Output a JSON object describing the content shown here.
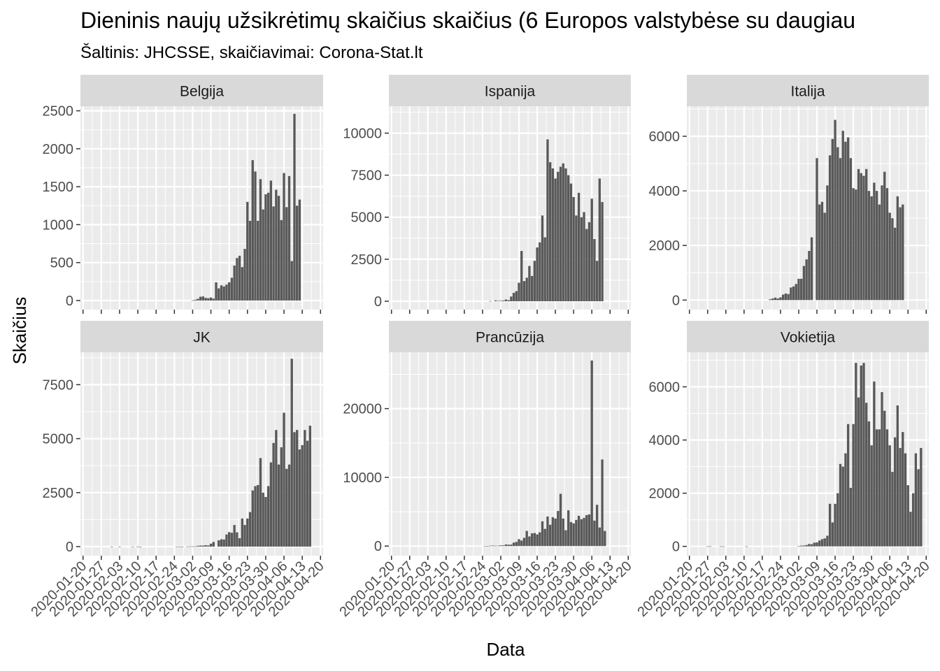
{
  "title": "Dieninis naujų užsikrėtimų skaičius skaičius (6 Europos valstybėse su daugiau",
  "subtitle": "Šaltinis: JHCSSE, skaičiavimai: Corona-Stat.lt",
  "colors": {
    "bar": "#595959",
    "panel": "#ebebeb",
    "strip": "#d9d9d9",
    "grid": "#ffffff"
  },
  "chart_data": {
    "type": "bar",
    "xlabel": "Data",
    "ylabel": "Skaičius",
    "x_ticks": [
      "2020-01-20",
      "2020-01-27",
      "2020-02-03",
      "2020-02-10",
      "2020-02-17",
      "2020-02-24",
      "2020-03-02",
      "2020-03-09",
      "2020-03-16",
      "2020-03-23",
      "2020-03-30",
      "2020-04-06",
      "2020-04-13",
      "2020-04-20"
    ],
    "x_range": [
      "2020-01-19",
      "2020-04-21"
    ],
    "grid": true,
    "panels": [
      {
        "name": "Belgija",
        "ylim": [
          -120,
          2560
        ],
        "y_ticks": [
          0,
          500,
          1000,
          1500,
          2000,
          2500
        ],
        "start": "2020-03-01",
        "values": [
          0,
          2,
          10,
          23,
          50,
          54,
          35,
          30,
          40,
          25,
          240,
          160,
          200,
          185,
          210,
          240,
          300,
          460,
          560,
          590,
          440,
          680,
          1300,
          1050,
          1850,
          1700,
          1050,
          1600,
          1200,
          1400,
          1420,
          1580,
          1240,
          1460,
          1380,
          1060,
          1680,
          1230,
          1640,
          520,
          2460,
          1250,
          1330
        ]
      },
      {
        "name": "Ispanija",
        "ylim": [
          -500,
          11600
        ],
        "y_ticks": [
          0,
          2500,
          5000,
          7500,
          10000
        ],
        "start": "2020-02-27",
        "values": [
          10,
          0,
          50,
          20,
          30,
          40,
          100,
          60,
          280,
          500,
          600,
          1100,
          2990,
          1200,
          1400,
          2100,
          1500,
          2400,
          3200,
          3500,
          5100,
          3800,
          9630,
          8270,
          7900,
          7300,
          7700,
          8000,
          8200,
          7900,
          7500,
          7000,
          6200,
          5100,
          6450,
          5000,
          5300,
          4300,
          4700,
          6100,
          3700,
          2400,
          7300,
          5900
        ]
      },
      {
        "name": "Italija",
        "ylim": [
          -350,
          7100
        ],
        "y_ticks": [
          0,
          2000,
          4000,
          6000
        ],
        "start": "2020-02-20",
        "values": [
          30,
          60,
          90,
          60,
          100,
          200,
          240,
          220,
          460,
          500,
          590,
          780,
          780,
          1250,
          1490,
          1800,
          2300,
          0,
          5200,
          3500,
          3600,
          3200,
          4200,
          5300,
          5900,
          6600,
          5600,
          5200,
          6200,
          5800,
          5960,
          5200,
          4100,
          4050,
          4800,
          4650,
          4550,
          4800,
          4000,
          3800,
          4300,
          4000,
          3500,
          4200,
          4700,
          4100,
          3200,
          3000,
          2650,
          3800,
          3400,
          3500
        ]
      },
      {
        "name": "JK",
        "ylim": [
          -420,
          9000
        ],
        "y_ticks": [
          0,
          2500,
          5000,
          7500
        ],
        "start": "2020-01-31",
        "values": [
          2,
          0,
          0,
          1,
          0,
          0,
          0,
          0,
          3,
          0,
          1,
          1,
          0,
          0,
          0,
          0,
          0,
          0,
          0,
          0,
          0,
          0,
          0,
          0,
          0,
          2,
          4,
          2,
          0,
          5,
          10,
          10,
          12,
          35,
          48,
          46,
          65,
          50,
          135,
          215,
          0,
          290,
          340,
          330,
          560,
          670,
          640,
          1000,
          660,
          390,
          1300,
          1000,
          1300,
          1600,
          2600,
          2800,
          2850,
          4100,
          2500,
          2300,
          2800,
          3900,
          4800,
          5400,
          3800,
          4600,
          6200,
          3600,
          3800,
          8700,
          5300,
          5400,
          4500,
          4700,
          5400,
          4900,
          5600
        ]
      },
      {
        "name": "Prancūzija",
        "ylim": [
          -1400,
          28200
        ],
        "y_ticks": [
          0,
          10000,
          20000
        ],
        "start": "2020-02-25",
        "values": [
          10,
          20,
          60,
          80,
          50,
          60,
          110,
          100,
          230,
          200,
          210,
          500,
          600,
          1000,
          800,
          1200,
          2200,
          1400,
          1850,
          1900,
          1700,
          2000,
          3600,
          2500,
          4300,
          3100,
          4200,
          4000,
          5100,
          7600,
          4000,
          2300,
          5200,
          3500,
          3300,
          3800,
          4400,
          3900,
          4100,
          4500,
          4600,
          27000,
          3700,
          6000,
          2700,
          12600,
          2200
        ]
      },
      {
        "name": "Vokietija",
        "ylim": [
          -350,
          7300
        ],
        "y_ticks": [
          0,
          2000,
          4000,
          6000
        ],
        "start": "2020-01-27",
        "values": [
          1,
          3,
          0,
          0,
          0,
          4,
          1,
          0,
          0,
          0,
          0,
          0,
          0,
          0,
          0,
          1,
          0,
          0,
          0,
          0,
          0,
          0,
          0,
          0,
          0,
          0,
          0,
          0,
          0,
          0,
          0,
          0,
          0,
          0,
          0,
          10,
          28,
          30,
          50,
          90,
          80,
          140,
          150,
          220,
          270,
          300,
          400,
          1600,
          900,
          1600,
          2000,
          3100,
          3000,
          3500,
          4600,
          2200,
          4600,
          6900,
          5600,
          6800,
          6900,
          5400,
          4700,
          3800,
          6200,
          4400,
          4400,
          5800,
          5100,
          4400,
          3800,
          2800,
          4100,
          5300,
          3700,
          4300,
          3500,
          2300,
          1300,
          2000,
          3500,
          2900,
          3700
        ]
      }
    ]
  }
}
